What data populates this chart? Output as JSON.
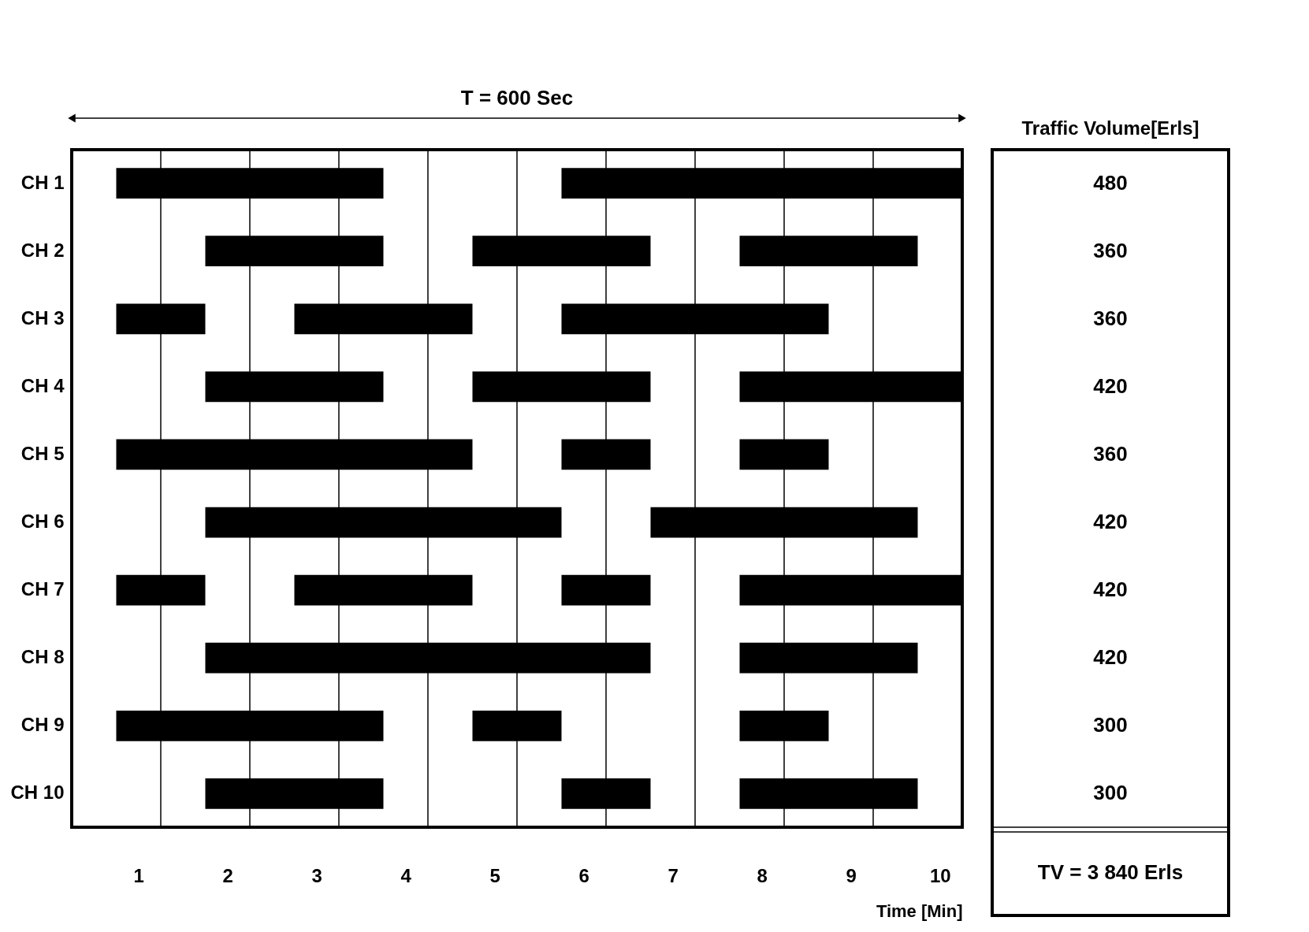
{
  "chart_data": {
    "type": "bar",
    "orientation": "horizontal",
    "categories": [
      "CH 1",
      "CH 2",
      "CH 3",
      "CH 4",
      "CH 5",
      "CH 6",
      "CH 7",
      "CH 8",
      "CH 9",
      "CH 10"
    ],
    "series": [
      {
        "color": "#000000",
        "base": [
          0.5,
          1.5,
          0.5,
          1.5,
          0.5,
          1.5,
          0.5,
          1.5,
          0.5,
          1.5
        ],
        "values": [
          3,
          2,
          1,
          2,
          4,
          4,
          1,
          5,
          3,
          2
        ]
      },
      {
        "color": "#000000",
        "base": [
          5.5,
          4.5,
          2.5,
          4.5,
          5.5,
          6.5,
          2.5,
          7.5,
          4.5,
          5.5
        ],
        "values": [
          4.5,
          2,
          2,
          2,
          1,
          3,
          2,
          2,
          1,
          1
        ]
      },
      {
        "color": "#000000",
        "base": [
          null,
          7.5,
          5.5,
          7.5,
          7.5,
          null,
          5.5,
          null,
          7.5,
          7.5
        ],
        "values": [
          null,
          2,
          3,
          2.5,
          1,
          null,
          1,
          null,
          1,
          2
        ]
      },
      {
        "color": "#000000",
        "base": [
          null,
          null,
          null,
          null,
          null,
          null,
          7.5,
          null,
          null,
          null
        ],
        "values": [
          null,
          null,
          null,
          null,
          null,
          null,
          2.5,
          null,
          null,
          null
        ]
      }
    ],
    "xlim": [
      0,
      10
    ],
    "xticks": [
      {
        "value": 0.75,
        "label": "1"
      },
      {
        "value": 1,
        "label": null
      },
      {
        "value": 1.75,
        "label": "2"
      },
      {
        "value": 2,
        "label": null
      },
      {
        "value": 2.75,
        "label": "3"
      },
      {
        "value": 3,
        "label": null
      },
      {
        "value": 3.75,
        "label": "4"
      },
      {
        "value": 4,
        "label": null
      },
      {
        "value": 4.75,
        "label": "5"
      },
      {
        "value": 5,
        "label": null
      },
      {
        "value": 5.75,
        "label": "6"
      },
      {
        "value": 6,
        "label": null
      },
      {
        "value": 6.75,
        "label": "7"
      },
      {
        "value": 7,
        "label": null
      },
      {
        "value": 7.75,
        "label": "8"
      },
      {
        "value": 8,
        "label": null
      },
      {
        "value": 8.75,
        "label": "9"
      },
      {
        "value": 9,
        "label": null
      },
      {
        "value": 9.75,
        "label": "10"
      }
    ],
    "xlabel": "Time [Min]",
    "grid": "x",
    "annotations": [
      "T = 600 Sec",
      "Traffic Volume[Erls]",
      "480",
      "360",
      "360",
      "420",
      "360",
      "420",
      "420",
      "420",
      "300",
      "300",
      "TV = 3 840 Erls"
    ]
  }
}
